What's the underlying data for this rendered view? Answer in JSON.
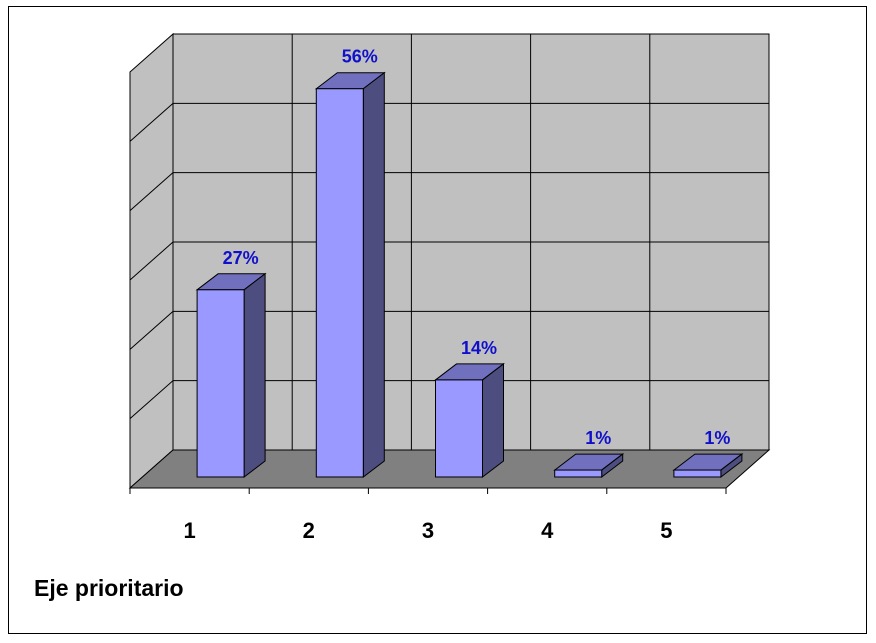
{
  "chart_data": {
    "type": "bar",
    "style": "3d-column",
    "categories": [
      "1",
      "2",
      "3",
      "4",
      "5"
    ],
    "values": [
      27,
      56,
      14,
      1,
      1
    ],
    "data_labels": [
      "27%",
      "56%",
      "14%",
      "1%",
      "1%"
    ],
    "xlabel": "Eje prioritario",
    "ylabel": "",
    "ylim": [
      0,
      60
    ],
    "grid": true,
    "legend": "none",
    "colors": {
      "bar_front": "#9999ff",
      "bar_side": "#4d4d80",
      "bar_top": "#7070bf",
      "wall": "#c0c0c0",
      "floor": "#808080",
      "data_label": "#1010cc"
    }
  }
}
